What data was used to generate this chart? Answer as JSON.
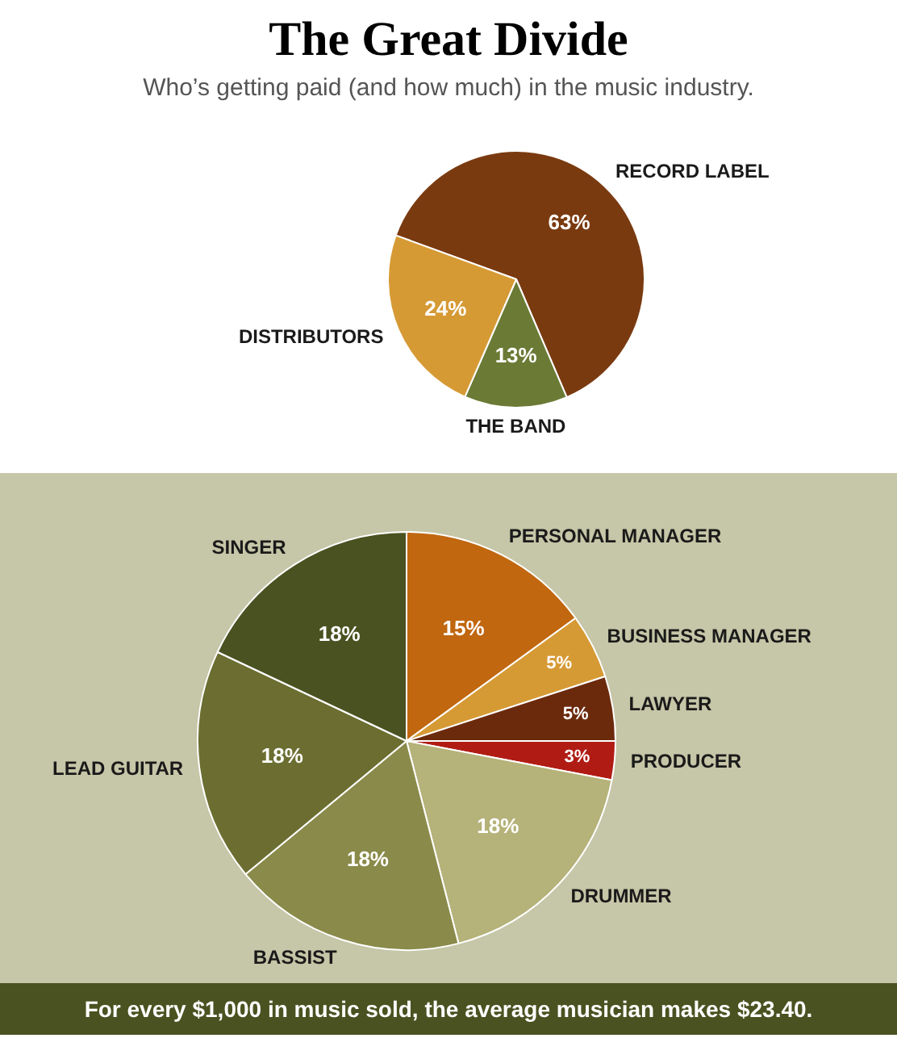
{
  "chart_data": [
    {
      "type": "pie",
      "title": "The Great Divide",
      "subtitle": "Who’s getting paid (and how much) in the music industry.",
      "categories": [
        "RECORD LABEL",
        "THE BAND",
        "DISTRIBUTORS"
      ],
      "values": [
        63,
        13,
        24
      ],
      "colors": [
        "#7a3a10",
        "#6b7a35",
        "#d69a35"
      ],
      "value_labels": [
        "63%",
        "13%",
        "24%"
      ],
      "legend": false
    },
    {
      "type": "pie",
      "categories": [
        "PERSONAL MANAGER",
        "BUSINESS MANAGER",
        "LAWYER",
        "PRODUCER",
        "DRUMMER",
        "BASSIST",
        "LEAD GUITAR",
        "SINGER"
      ],
      "values": [
        15,
        5,
        5,
        3,
        18,
        18,
        18,
        18
      ],
      "colors": [
        "#c0670f",
        "#d69a35",
        "#6b2a0c",
        "#b01c14",
        "#b5b27a",
        "#8a8a4a",
        "#6b6e30",
        "#4a5221"
      ],
      "value_labels": [
        "15%",
        "5%",
        "5%",
        "3%",
        "18%",
        "18%",
        "18%",
        "18%"
      ],
      "legend": false,
      "annotations": [
        "For every $1,000 in music sold, the average musician makes $23.40."
      ]
    }
  ]
}
